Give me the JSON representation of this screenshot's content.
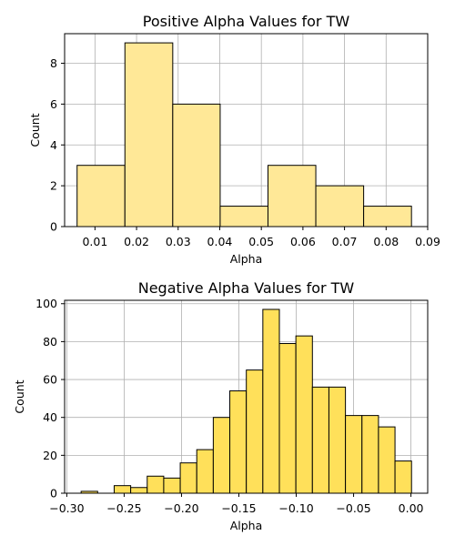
{
  "chart_data": [
    {
      "type": "bar",
      "title": "Positive Alpha Values for TW",
      "xlabel": "Alpha",
      "ylabel": "Count",
      "color": "#ffe897",
      "xlim": [
        0.0027,
        0.09
      ],
      "ylim": [
        0,
        9.45
      ],
      "xticks": [
        0.01,
        0.02,
        0.03,
        0.04,
        0.05,
        0.06,
        0.07,
        0.08,
        0.09
      ],
      "xtick_labels": [
        "0.01",
        "0.02",
        "0.03",
        "0.04",
        "0.05",
        "0.06",
        "0.07",
        "0.08",
        "0.09"
      ],
      "yticks": [
        0,
        2,
        4,
        6,
        8
      ],
      "ytick_labels": [
        "0",
        "2",
        "4",
        "6",
        "8"
      ],
      "grid": true,
      "bins": [
        {
          "x0": 0.0057,
          "x1": 0.0172,
          "value": 3
        },
        {
          "x0": 0.0172,
          "x1": 0.0287,
          "value": 9
        },
        {
          "x0": 0.0287,
          "x1": 0.0401,
          "value": 6
        },
        {
          "x0": 0.0401,
          "x1": 0.0516,
          "value": 1
        },
        {
          "x0": 0.0516,
          "x1": 0.0631,
          "value": 3
        },
        {
          "x0": 0.0631,
          "x1": 0.0746,
          "value": 2
        },
        {
          "x0": 0.0746,
          "x1": 0.0861,
          "value": 1
        }
      ]
    },
    {
      "type": "bar",
      "title": "Negative Alpha Values for TW",
      "xlabel": "Alpha",
      "ylabel": "Count",
      "color": "#ffe05a",
      "xlim": [
        -0.3019,
        0.0146
      ],
      "ylim": [
        0,
        101.8
      ],
      "xticks": [
        -0.3,
        -0.25,
        -0.2,
        -0.15,
        -0.1,
        -0.05,
        0.0
      ],
      "xtick_labels": [
        "−0.30",
        "−0.25",
        "−0.20",
        "−0.15",
        "−0.10",
        "−0.05",
        "0.00"
      ],
      "yticks": [
        0,
        20,
        40,
        60,
        80,
        100
      ],
      "ytick_labels": [
        "0",
        "20",
        "40",
        "60",
        "80",
        "100"
      ],
      "grid": true,
      "bins": [
        {
          "x0": -0.2875,
          "x1": -0.2731,
          "value": 1
        },
        {
          "x0": -0.2731,
          "x1": -0.2587,
          "value": 0
        },
        {
          "x0": -0.2587,
          "x1": -0.2443,
          "value": 4
        },
        {
          "x0": -0.2443,
          "x1": -0.2299,
          "value": 3
        },
        {
          "x0": -0.2299,
          "x1": -0.2155,
          "value": 9
        },
        {
          "x0": -0.2155,
          "x1": -0.2011,
          "value": 8
        },
        {
          "x0": -0.2011,
          "x1": -0.1867,
          "value": 16
        },
        {
          "x0": -0.1867,
          "x1": -0.1723,
          "value": 23
        },
        {
          "x0": -0.1723,
          "x1": -0.1579,
          "value": 40
        },
        {
          "x0": -0.1579,
          "x1": -0.1435,
          "value": 54
        },
        {
          "x0": -0.1435,
          "x1": -0.1291,
          "value": 65
        },
        {
          "x0": -0.1291,
          "x1": -0.1147,
          "value": 97
        },
        {
          "x0": -0.1147,
          "x1": -0.1003,
          "value": 79
        },
        {
          "x0": -0.1003,
          "x1": -0.0859,
          "value": 83
        },
        {
          "x0": -0.0859,
          "x1": -0.0715,
          "value": 56
        },
        {
          "x0": -0.0715,
          "x1": -0.0571,
          "value": 56
        },
        {
          "x0": -0.0571,
          "x1": -0.0427,
          "value": 41
        },
        {
          "x0": -0.0427,
          "x1": -0.0283,
          "value": 41
        },
        {
          "x0": -0.0283,
          "x1": -0.0139,
          "value": 35
        },
        {
          "x0": -0.0139,
          "x1": 0.0005,
          "value": 17
        }
      ]
    }
  ]
}
